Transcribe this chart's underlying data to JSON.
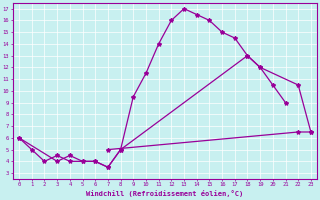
{
  "xlabel": "Windchill (Refroidissement éolien,°C)",
  "bg_color": "#c8f0f0",
  "line_color": "#990099",
  "x_all": [
    0,
    1,
    2,
    3,
    4,
    5,
    6,
    7,
    8,
    9,
    10,
    11,
    12,
    13,
    14,
    15,
    16,
    17,
    18,
    19,
    20,
    21,
    22,
    23
  ],
  "line1_x": [
    0,
    1,
    2,
    3,
    4,
    5,
    6,
    7,
    8,
    9,
    10,
    11,
    12,
    13,
    14,
    15,
    16,
    17,
    18,
    19,
    20,
    21
  ],
  "line1_y": [
    6,
    5,
    4,
    4.5,
    4,
    4,
    4,
    3.5,
    5,
    9.5,
    11.5,
    14,
    16,
    17,
    16.5,
    16,
    15,
    14.5,
    13,
    12,
    10.5,
    9
  ],
  "line2_x": [
    0,
    3,
    4,
    5,
    6,
    7,
    8,
    18,
    19,
    22,
    23
  ],
  "line2_y": [
    6,
    4,
    4.5,
    4,
    4,
    3.5,
    5,
    13,
    12,
    10.5,
    6.5
  ],
  "line3_x": [
    7,
    22,
    23
  ],
  "line3_y": [
    5,
    6.5,
    6.5
  ],
  "xmin": -0.5,
  "xmax": 23.5,
  "ymin": 2.5,
  "ymax": 17.5,
  "xticks": [
    0,
    1,
    2,
    3,
    4,
    5,
    6,
    7,
    8,
    9,
    10,
    11,
    12,
    13,
    14,
    15,
    16,
    17,
    18,
    19,
    20,
    21,
    22,
    23
  ],
  "yticks": [
    3,
    4,
    5,
    6,
    7,
    8,
    9,
    10,
    11,
    12,
    13,
    14,
    15,
    16,
    17
  ]
}
